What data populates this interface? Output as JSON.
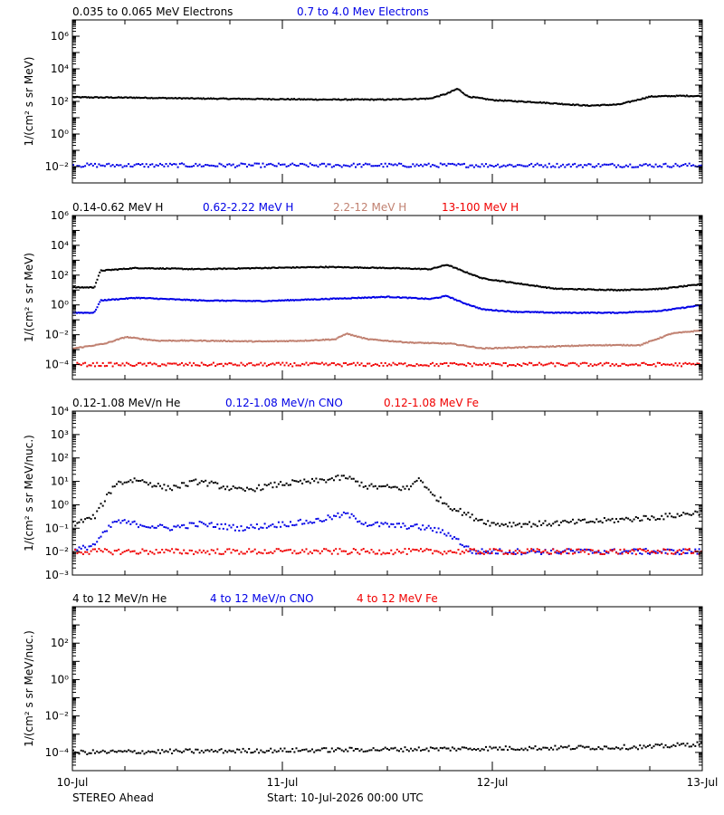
{
  "footer": {
    "spacecraft": "STEREO Ahead",
    "start": "Start: 10-Jul-2026 00:00 UTC"
  },
  "x_ticks": [
    "10-Jul",
    "11-Jul",
    "12-Jul",
    "13-Jul"
  ],
  "colors": {
    "black": "#000000",
    "blue": "#0000e6",
    "tan": "#c08070",
    "red": "#f00000"
  },
  "chart_data": [
    {
      "type": "scatter",
      "ylabel": "1/(cm² s sr MeV)",
      "yscale": "log",
      "ylim": [
        0.001,
        10000000
      ],
      "ytick_exponents": [
        -2,
        0,
        2,
        4,
        6
      ],
      "xlim_days": [
        0,
        3
      ],
      "grid": false,
      "legend": [
        {
          "label": "0.035 to 0.065 MeV Electrons",
          "color": "#000000"
        },
        {
          "label": "0.7 to 4.0 Mev Electrons",
          "color": "#0000e6"
        }
      ],
      "series": [
        {
          "name": "0.035 to 0.065 MeV Electrons",
          "color": "#000000",
          "style": "line",
          "x": [
            0,
            0.3,
            0.6,
            0.9,
            1.2,
            1.5,
            1.7,
            1.78,
            1.83,
            1.88,
            2.0,
            2.2,
            2.45,
            2.6,
            2.75,
            2.9,
            3.0
          ],
          "y": [
            180,
            170,
            150,
            140,
            130,
            130,
            150,
            300,
            600,
            200,
            120,
            90,
            55,
            65,
            200,
            220,
            210
          ]
        },
        {
          "name": "0.7 to 4.0 Mev Electrons",
          "color": "#0000e6",
          "style": "dots",
          "x": [
            0,
            3
          ],
          "y": [
            0.012,
            0.012
          ]
        }
      ]
    },
    {
      "type": "scatter",
      "ylabel": "1/(cm² s sr MeV)",
      "yscale": "log",
      "ylim": [
        1e-05,
        1000000
      ],
      "ytick_exponents": [
        -4,
        -2,
        0,
        2,
        4,
        6
      ],
      "xlim_days": [
        0,
        3
      ],
      "grid": false,
      "legend": [
        {
          "label": "0.14-0.62 MeV H",
          "color": "#000000"
        },
        {
          "label": "0.62-2.22 MeV H",
          "color": "#0000e6"
        },
        {
          "label": "2.2-12 MeV H",
          "color": "#c08070"
        },
        {
          "label": "13-100 MeV H",
          "color": "#f00000"
        }
      ],
      "series": [
        {
          "name": "0.14-0.62 MeV H",
          "color": "#000000",
          "style": "line",
          "x": [
            0,
            0.1,
            0.13,
            0.3,
            0.6,
            0.9,
            1.2,
            1.5,
            1.7,
            1.78,
            1.85,
            1.95,
            2.1,
            2.3,
            2.6,
            2.8,
            3.0
          ],
          "y": [
            15,
            15,
            200,
            300,
            250,
            300,
            350,
            300,
            250,
            500,
            200,
            60,
            30,
            12,
            10,
            12,
            25
          ]
        },
        {
          "name": "0.62-2.22 MeV H",
          "color": "#0000e6",
          "style": "line",
          "x": [
            0,
            0.1,
            0.13,
            0.3,
            0.6,
            0.9,
            1.2,
            1.5,
            1.7,
            1.78,
            1.85,
            1.95,
            2.1,
            2.3,
            2.6,
            2.8,
            3.0
          ],
          "y": [
            0.3,
            0.3,
            2,
            3,
            2,
            1.8,
            2.5,
            3.5,
            2.5,
            4,
            1.5,
            0.5,
            0.35,
            0.3,
            0.3,
            0.4,
            1
          ]
        },
        {
          "name": "2.2-12 MeV H",
          "color": "#c08070",
          "style": "line",
          "x": [
            0,
            0.15,
            0.25,
            0.4,
            0.6,
            0.9,
            1.1,
            1.25,
            1.3,
            1.4,
            1.6,
            1.8,
            1.95,
            2.2,
            2.5,
            2.7,
            2.85,
            3.0
          ],
          "y": [
            0.0012,
            0.0025,
            0.007,
            0.004,
            0.004,
            0.0035,
            0.004,
            0.005,
            0.012,
            0.005,
            0.003,
            0.0025,
            0.0012,
            0.0015,
            0.002,
            0.002,
            0.012,
            0.02
          ]
        },
        {
          "name": "13-100 MeV H",
          "color": "#f00000",
          "style": "dots",
          "x": [
            0,
            3
          ],
          "y": [
            0.0001,
            0.0001
          ]
        }
      ]
    },
    {
      "type": "scatter",
      "ylabel": "1/(cm² s sr MeV/nuc.)",
      "yscale": "log",
      "ylim": [
        0.001,
        10000
      ],
      "ytick_exponents": [
        -3,
        -2,
        -1,
        0,
        1,
        2,
        3,
        4
      ],
      "xlim_days": [
        0,
        3
      ],
      "grid": false,
      "legend": [
        {
          "label": "0.12-1.08 MeV/n He",
          "color": "#000000"
        },
        {
          "label": "0.12-1.08 MeV/n CNO",
          "color": "#0000e6"
        },
        {
          "label": "0.12-1.08 MeV Fe",
          "color": "#f00000"
        }
      ],
      "series": [
        {
          "name": "0.12-1.08 MeV/n He",
          "color": "#000000",
          "style": "dots",
          "x": [
            0,
            0.1,
            0.2,
            0.3,
            0.45,
            0.6,
            0.8,
            1.0,
            1.15,
            1.3,
            1.4,
            1.6,
            1.65,
            1.7,
            1.8,
            1.9,
            2.0,
            2.2,
            2.5,
            2.8,
            3.0
          ],
          "y": [
            0.15,
            0.3,
            8,
            12,
            5,
            10,
            4,
            8,
            10,
            15,
            6,
            5,
            15,
            3,
            0.8,
            0.3,
            0.15,
            0.15,
            0.2,
            0.3,
            0.5
          ]
        },
        {
          "name": "0.12-1.08 MeV/n CNO",
          "color": "#0000e6",
          "style": "dots",
          "x": [
            0,
            0.1,
            0.2,
            0.3,
            0.45,
            0.6,
            0.8,
            1.0,
            1.15,
            1.3,
            1.4,
            1.6,
            1.7,
            1.8,
            1.9,
            3.0
          ],
          "y": [
            0.01,
            0.02,
            0.2,
            0.15,
            0.1,
            0.15,
            0.1,
            0.15,
            0.2,
            0.4,
            0.15,
            0.12,
            0.1,
            0.05,
            0.01,
            0.01
          ]
        },
        {
          "name": "0.12-1.08 MeV Fe",
          "color": "#f00000",
          "style": "dots",
          "x": [
            0,
            3
          ],
          "y": [
            0.01,
            0.01
          ]
        }
      ]
    },
    {
      "type": "scatter",
      "ylabel": "1/(cm² s sr MeV/nuc.)",
      "yscale": "log",
      "ylim": [
        1e-05,
        10000
      ],
      "ytick_exponents": [
        -4,
        -2,
        0,
        2
      ],
      "xlim_days": [
        0,
        3
      ],
      "grid": false,
      "legend": [
        {
          "label": "4 to 12 MeV/n He",
          "color": "#000000"
        },
        {
          "label": "4 to 12 MeV/n CNO",
          "color": "#0000e6"
        },
        {
          "label": "4 to 12 MeV Fe",
          "color": "#f00000"
        }
      ],
      "series": [
        {
          "name": "4 to 12 MeV/n He",
          "color": "#000000",
          "style": "dots",
          "x": [
            0,
            2.75,
            3.0
          ],
          "y": [
            0.0001,
            0.0002,
            0.0003
          ]
        }
      ]
    }
  ]
}
